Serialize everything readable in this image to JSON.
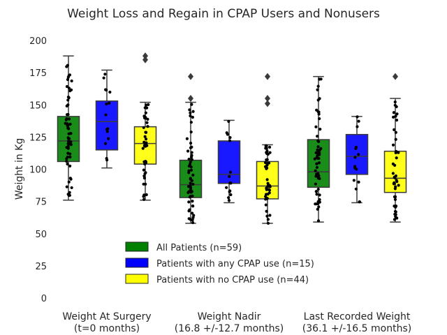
{
  "chart_data": {
    "type": "box",
    "title": "Weight Loss and Regain in CPAP Users and Nonusers",
    "xlabel": "",
    "ylabel": "Weight in Kg",
    "ylim": [
      0,
      210
    ],
    "yticks": [
      0,
      25,
      50,
      75,
      100,
      125,
      150,
      175,
      200
    ],
    "grid": false,
    "legend_position": "lower-center",
    "categories": [
      [
        "Weight At Surgery",
        "(t=0 months)"
      ],
      [
        "Weight Nadir",
        "(16.8 +/-12.7 months)"
      ],
      [
        "Last Recorded Weight",
        "(36.1 +/-16.5 months)"
      ]
    ],
    "series": [
      {
        "name": "All Patients (n=59)",
        "color": "#008000",
        "boxes": [
          {
            "whisker_low": 76,
            "q1": 106,
            "median": 122,
            "q3": 141,
            "whisker_high": 188,
            "outliers": []
          },
          {
            "whisker_low": 58,
            "q1": 78,
            "median": 88,
            "q3": 107,
            "whisker_high": 152,
            "outliers": [
              155,
              172
            ]
          },
          {
            "whisker_low": 59,
            "q1": 86,
            "median": 98,
            "q3": 123,
            "whisker_high": 172,
            "outliers": []
          }
        ]
      },
      {
        "name": "Patients with any CPAP use (n=15)",
        "color": "#0000ff",
        "boxes": [
          {
            "whisker_low": 101,
            "q1": 115,
            "median": 137,
            "q3": 153,
            "whisker_high": 177,
            "outliers": []
          },
          {
            "whisker_low": 74,
            "q1": 89,
            "median": 96,
            "q3": 122,
            "whisker_high": 138,
            "outliers": []
          },
          {
            "whisker_low": 74,
            "q1": 96,
            "median": 110,
            "q3": 127,
            "whisker_high": 141,
            "outliers": []
          }
        ]
      },
      {
        "name": "Patients with no CPAP use (n=44)",
        "color": "#ffff00",
        "boxes": [
          {
            "whisker_low": 76,
            "q1": 104,
            "median": 120,
            "q3": 133,
            "whisker_high": 152,
            "outliers": [
              185,
              188
            ]
          },
          {
            "whisker_low": 58,
            "q1": 77,
            "median": 87,
            "q3": 106,
            "whisker_high": 119,
            "outliers": [
              151,
              155,
              172
            ]
          },
          {
            "whisker_low": 59,
            "q1": 82,
            "median": 93,
            "q3": 114,
            "whisker_high": 155,
            "outliers": [
              172
            ]
          }
        ]
      }
    ]
  }
}
